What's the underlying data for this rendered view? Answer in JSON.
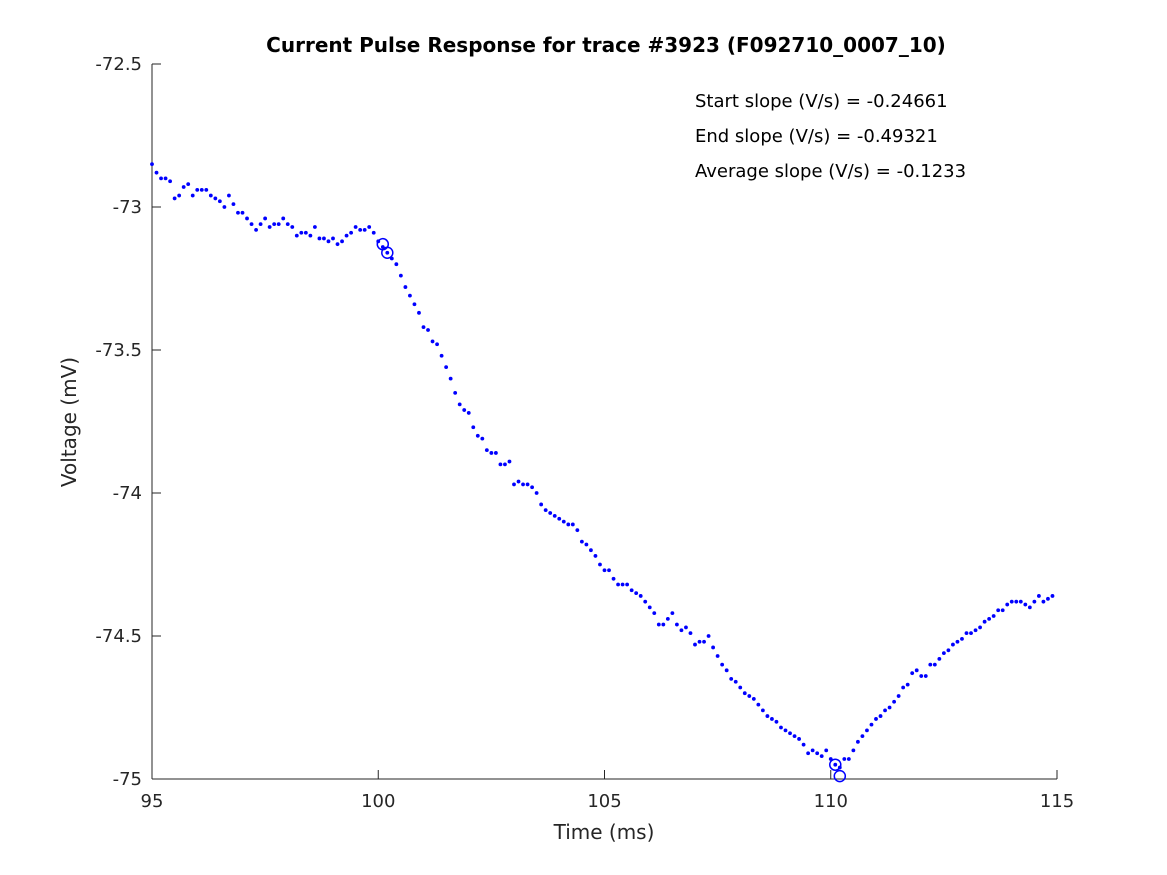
{
  "chart_data": {
    "type": "scatter",
    "title": "Current Pulse Response for trace #3923 (F092710_0007_10)",
    "xlabel": "Time (ms)",
    "ylabel": "Voltage (mV)",
    "xlim": [
      95,
      115
    ],
    "ylim": [
      -75,
      -72.5
    ],
    "xticks": [
      95,
      100,
      105,
      110,
      115
    ],
    "xtick_labels": [
      "95",
      "100",
      "105",
      "110",
      "115"
    ],
    "yticks": [
      -72.5,
      -73,
      -73.5,
      -74,
      -74.5,
      -75
    ],
    "ytick_labels": [
      "-72.5",
      "-73",
      "-73.5",
      "-74",
      "-74.5",
      "-75"
    ],
    "grid": false,
    "annotations": [
      "Start slope (V/s) = -0.24661",
      "End slope (V/s) = -0.49321",
      "Average slope (V/s) = -0.1233"
    ],
    "series": [
      {
        "marker": "dot",
        "color": "#0000ff",
        "x": [
          95.0,
          95.1,
          95.2,
          95.3,
          95.4,
          95.5,
          95.6,
          95.7,
          95.8,
          95.9,
          96.0,
          96.1,
          96.2,
          96.3,
          96.4,
          96.5,
          96.6,
          96.7,
          96.8,
          96.9,
          97.0,
          97.1,
          97.2,
          97.3,
          97.4,
          97.5,
          97.6,
          97.7,
          97.8,
          97.9,
          98.0,
          98.1,
          98.2,
          98.3,
          98.4,
          98.5,
          98.6,
          98.7,
          98.8,
          98.9,
          99.0,
          99.1,
          99.2,
          99.3,
          99.4,
          99.5,
          99.6,
          99.7,
          99.8,
          99.9,
          100.0,
          100.1,
          100.2,
          100.3,
          100.4,
          100.5,
          100.6,
          100.7,
          100.8,
          100.9,
          101.0,
          101.1,
          101.2,
          101.3,
          101.4,
          101.5,
          101.6,
          101.7,
          101.8,
          101.9,
          102.0,
          102.1,
          102.2,
          102.3,
          102.4,
          102.5,
          102.6,
          102.7,
          102.8,
          102.9,
          103.0,
          103.1,
          103.2,
          103.3,
          103.4,
          103.5,
          103.6,
          103.7,
          103.8,
          103.9,
          104.0,
          104.1,
          104.2,
          104.3,
          104.4,
          104.5,
          104.6,
          104.7,
          104.8,
          104.9,
          105.0,
          105.1,
          105.2,
          105.3,
          105.4,
          105.5,
          105.6,
          105.7,
          105.8,
          105.9,
          106.0,
          106.1,
          106.2,
          106.3,
          106.4,
          106.5,
          106.6,
          106.7,
          106.8,
          106.9,
          107.0,
          107.1,
          107.2,
          107.3,
          107.4,
          107.5,
          107.6,
          107.7,
          107.8,
          107.9,
          108.0,
          108.1,
          108.2,
          108.3,
          108.4,
          108.5,
          108.6,
          108.7,
          108.8,
          108.9,
          109.0,
          109.1,
          109.2,
          109.3,
          109.4,
          109.5,
          109.6,
          109.7,
          109.8,
          109.9,
          110.0,
          110.1,
          110.2,
          110.3,
          110.4,
          110.5,
          110.6,
          110.7,
          110.8,
          110.9,
          111.0,
          111.1,
          111.2,
          111.3,
          111.4,
          111.5,
          111.6,
          111.7,
          111.8,
          111.9,
          112.0,
          112.1,
          112.2,
          112.3,
          112.4,
          112.5,
          112.6,
          112.7,
          112.8,
          112.9,
          113.0,
          113.1,
          113.2,
          113.3,
          113.4,
          113.5,
          113.6,
          113.7,
          113.8,
          113.9,
          114.0,
          114.1,
          114.2,
          114.3,
          114.4,
          114.5,
          114.6,
          114.7,
          114.8,
          114.9
        ],
        "y": [
          -72.85,
          -72.88,
          -72.9,
          -72.9,
          -72.91,
          -72.97,
          -72.96,
          -72.93,
          -72.92,
          -72.96,
          -72.94,
          -72.94,
          -72.94,
          -72.96,
          -72.97,
          -72.98,
          -73.0,
          -72.96,
          -72.99,
          -73.02,
          -73.02,
          -73.04,
          -73.06,
          -73.08,
          -73.06,
          -73.04,
          -73.07,
          -73.06,
          -73.06,
          -73.04,
          -73.06,
          -73.07,
          -73.1,
          -73.09,
          -73.09,
          -73.1,
          -73.07,
          -73.11,
          -73.11,
          -73.12,
          -73.11,
          -73.13,
          -73.12,
          -73.1,
          -73.09,
          -73.07,
          -73.08,
          -73.08,
          -73.07,
          -73.09,
          -73.12,
          -73.14,
          -73.16,
          -73.18,
          -73.2,
          -73.24,
          -73.28,
          -73.31,
          -73.34,
          -73.37,
          -73.42,
          -73.43,
          -73.47,
          -73.48,
          -73.52,
          -73.56,
          -73.6,
          -73.65,
          -73.69,
          -73.71,
          -73.72,
          -73.77,
          -73.8,
          -73.81,
          -73.85,
          -73.86,
          -73.86,
          -73.9,
          -73.9,
          -73.89,
          -73.97,
          -73.96,
          -73.97,
          -73.97,
          -73.98,
          -74.0,
          -74.04,
          -74.06,
          -74.07,
          -74.08,
          -74.09,
          -74.1,
          -74.11,
          -74.11,
          -74.13,
          -74.17,
          -74.18,
          -74.2,
          -74.22,
          -74.25,
          -74.27,
          -74.27,
          -74.3,
          -74.32,
          -74.32,
          -74.32,
          -74.34,
          -74.35,
          -74.36,
          -74.38,
          -74.4,
          -74.42,
          -74.46,
          -74.46,
          -74.44,
          -74.42,
          -74.46,
          -74.48,
          -74.47,
          -74.49,
          -74.53,
          -74.52,
          -74.52,
          -74.5,
          -74.54,
          -74.57,
          -74.6,
          -74.62,
          -74.65,
          -74.66,
          -74.68,
          -74.7,
          -74.71,
          -74.72,
          -74.74,
          -74.76,
          -74.78,
          -74.79,
          -74.8,
          -74.82,
          -74.83,
          -74.84,
          -74.85,
          -74.86,
          -74.88,
          -74.91,
          -74.9,
          -74.91,
          -74.92,
          -74.9,
          -74.93,
          -74.95,
          -74.96,
          -74.93,
          -74.93,
          -74.9,
          -74.87,
          -74.85,
          -74.83,
          -74.81,
          -74.79,
          -74.78,
          -74.76,
          -74.75,
          -74.73,
          -74.71,
          -74.68,
          -74.67,
          -74.63,
          -74.62,
          -74.64,
          -74.64,
          -74.6,
          -74.6,
          -74.58,
          -74.56,
          -74.55,
          -74.53,
          -74.52,
          -74.51,
          -74.49,
          -74.49,
          -74.48,
          -74.47,
          -74.45,
          -74.44,
          -74.43,
          -74.41,
          -74.41,
          -74.39,
          -74.38,
          -74.38,
          -74.38,
          -74.39,
          -74.4,
          -74.38,
          -74.36,
          -74.38,
          -74.37,
          -74.36
        ]
      }
    ],
    "markers": [
      {
        "x": 100.1,
        "y": -73.13,
        "marker": "circle",
        "color": "#0000ff"
      },
      {
        "x": 100.2,
        "y": -73.16,
        "marker": "circle",
        "color": "#0000ff"
      },
      {
        "x": 110.1,
        "y": -74.95,
        "marker": "circle",
        "color": "#0000ff"
      },
      {
        "x": 110.2,
        "y": -74.99,
        "marker": "circle",
        "color": "#0000ff"
      }
    ]
  }
}
